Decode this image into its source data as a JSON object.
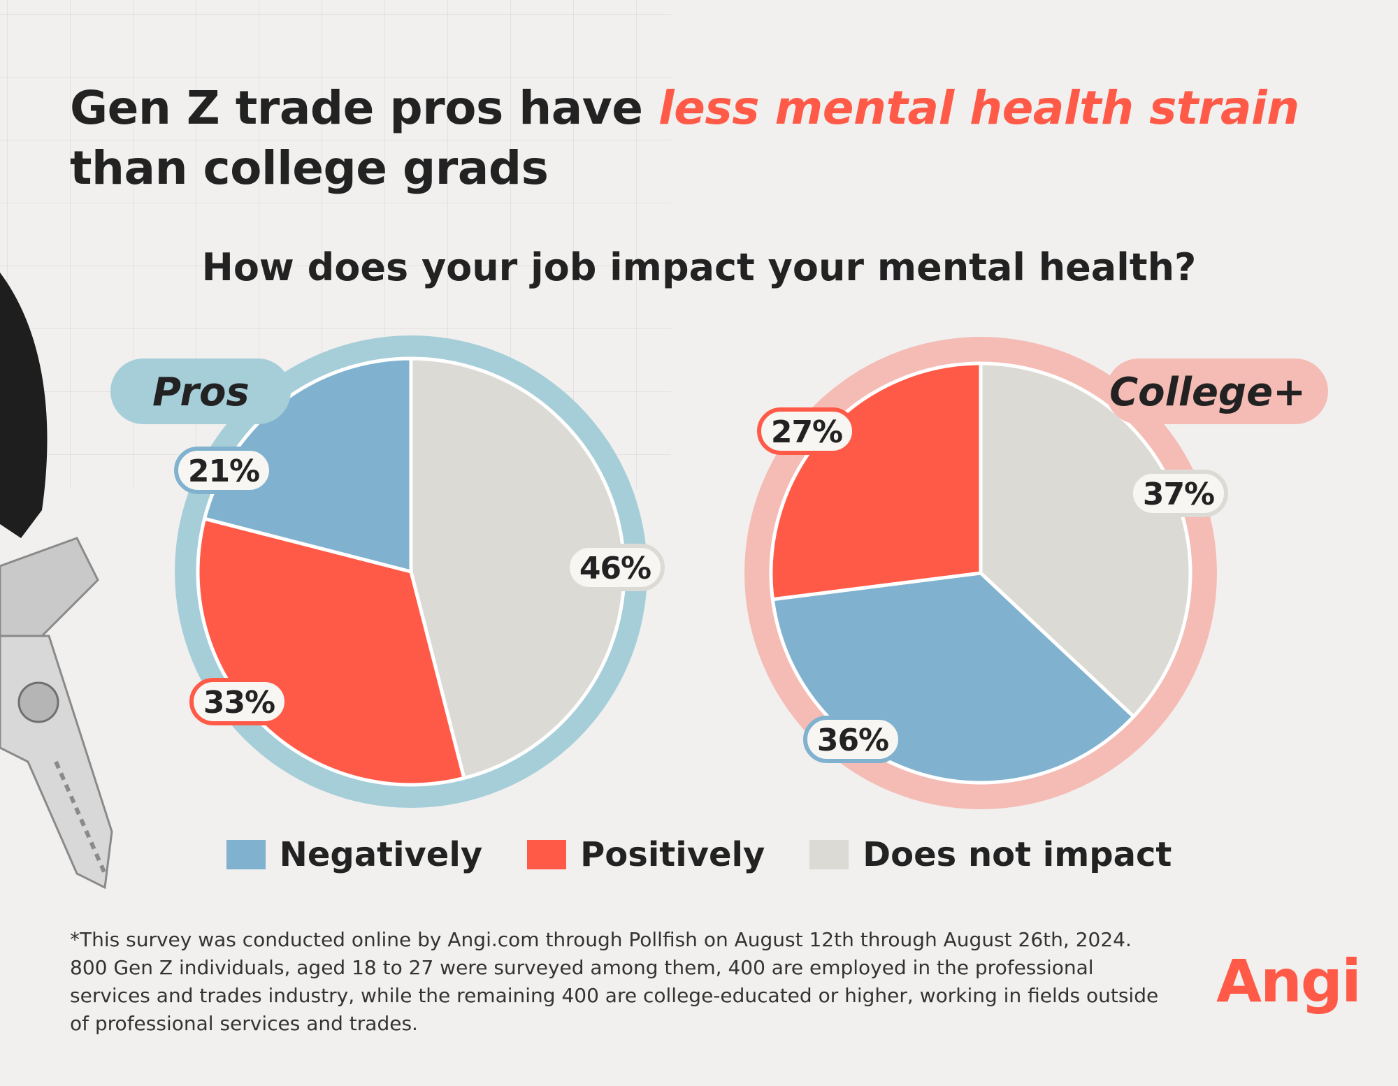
{
  "title": {
    "part1": "Gen Z trade pros have ",
    "highlight": "less mental health strain",
    "part2": "than college grads"
  },
  "colors": {
    "negatively": "#80b2d0",
    "positively": "#ff5a48",
    "does_not_impact": "#dcdad5",
    "pros_ring": "#a6ced9",
    "college_ring": "#f5bcb6",
    "accent": "#ff5a48"
  },
  "chart_data": [
    {
      "type": "pie",
      "title": "How does your job impact your mental health?",
      "label": "Pros",
      "categories": [
        "Negatively",
        "Positively",
        "Does not impact"
      ],
      "values": [
        21,
        33,
        46
      ],
      "labels": [
        "21%",
        "33%",
        "46%"
      ]
    },
    {
      "type": "pie",
      "title": "How does your job impact your mental health?",
      "label": "College+",
      "categories": [
        "Negatively",
        "Positively",
        "Does not impact"
      ],
      "values": [
        36,
        27,
        37
      ],
      "labels": [
        "36%",
        "27%",
        "37%"
      ]
    }
  ],
  "legend": [
    {
      "label": "Negatively",
      "color": "#80b2d0"
    },
    {
      "label": "Positively",
      "color": "#ff5a48"
    },
    {
      "label": "Does not impact",
      "color": "#dcdad5"
    }
  ],
  "footnote": "*This survey was conducted online by Angi.com through Pollfish on August 12th through August 26th, 2024. 800 Gen Z individuals, aged 18 to 27 were surveyed among them, 400 are employed in the professional services and trades industry, while the remaining 400 are college-educated or higher, working in fields outside of professional services and trades.",
  "logo": "Angi",
  "icons": [
    "pliers-illustration"
  ]
}
